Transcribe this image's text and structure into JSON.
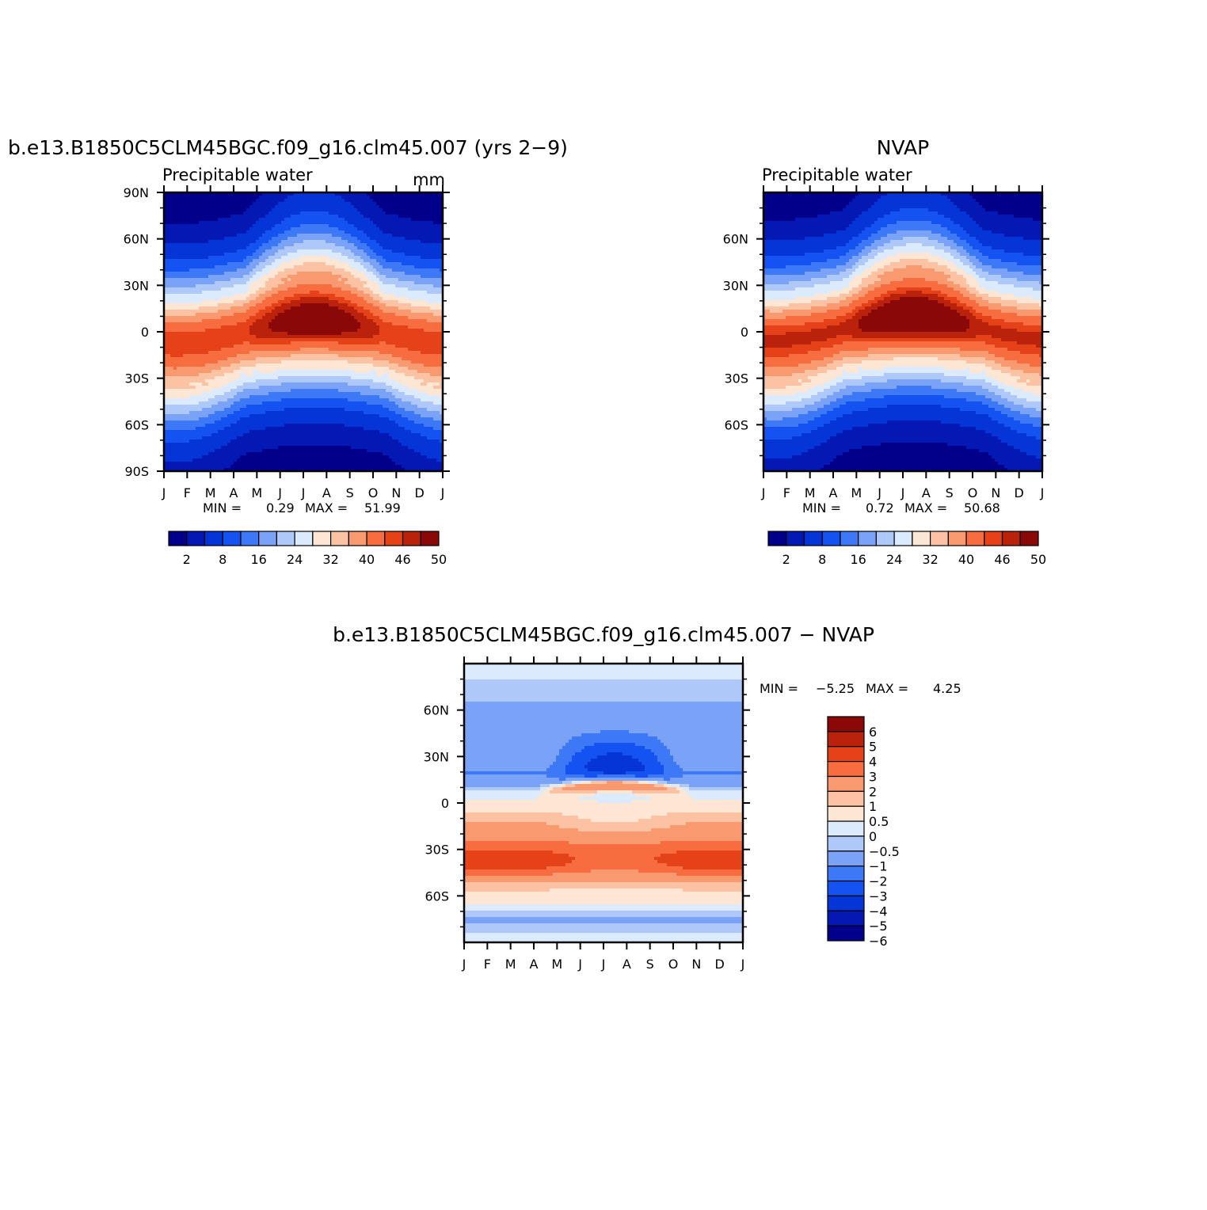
{
  "figure": {
    "colors": {
      "abs": [
        "#02008a",
        "#0418b4",
        "#0535d6",
        "#1452f2",
        "#3d78f6",
        "#7aa2f7",
        "#afc8fa",
        "#dbeafc",
        "#fde6d3",
        "#fbc2a3",
        "#f99970",
        "#f76d3f",
        "#e6421a",
        "#bb220c",
        "#8a0808"
      ],
      "diff": [
        "#02008a",
        "#0418b4",
        "#0535d6",
        "#1452f2",
        "#3d78f6",
        "#7aa2f7",
        "#afc8fa",
        "#dbeafc",
        "#fde6d3",
        "#fbc2a3",
        "#f99970",
        "#f76d3f",
        "#e6421a",
        "#bb220c",
        "#8a0808"
      ]
    }
  },
  "chart_data": [
    {
      "type": "heatmap",
      "title": "b.e13.B1850C5CLM45BGC.f09_g16.clm45.007 (yrs 2−9)",
      "subtitle": "Precipitable water",
      "units": "mm",
      "x_ticks": [
        "J",
        "F",
        "M",
        "A",
        "M",
        "J",
        "J",
        "A",
        "S",
        "O",
        "N",
        "D",
        "J"
      ],
      "y_ticks": [
        "90N",
        "60N",
        "30N",
        "0",
        "30S",
        "60S",
        "90S"
      ],
      "ylim": [
        -90,
        90
      ],
      "stats": {
        "min_label": "MIN =",
        "min": "0.29",
        "max_label": "MAX =",
        "max": "51.99"
      },
      "colorbar": {
        "labels": [
          "2",
          "8",
          "16",
          "24",
          "32",
          "40",
          "46",
          "50"
        ],
        "levels": [
          2,
          4,
          8,
          12,
          16,
          20,
          24,
          28,
          32,
          36,
          40,
          44,
          46,
          48,
          50
        ]
      },
      "max_value": 51.99,
      "min_value": 0.29
    },
    {
      "type": "heatmap",
      "title": "NVAP",
      "subtitle": "Precipitable water",
      "x_ticks": [
        "J",
        "F",
        "M",
        "A",
        "M",
        "J",
        "J",
        "A",
        "S",
        "O",
        "N",
        "D",
        "J"
      ],
      "y_ticks": [
        "60N",
        "30N",
        "0",
        "30S",
        "60S"
      ],
      "ylim": [
        -90,
        90
      ],
      "stats": {
        "min_label": "MIN =",
        "min": "0.72",
        "max_label": "MAX =",
        "max": "50.68"
      },
      "colorbar": {
        "labels": [
          "2",
          "8",
          "16",
          "24",
          "32",
          "40",
          "46",
          "50"
        ],
        "levels": [
          2,
          4,
          8,
          12,
          16,
          20,
          24,
          28,
          32,
          36,
          40,
          44,
          46,
          48,
          50
        ]
      },
      "max_value": 50.68,
      "min_value": 0.72
    },
    {
      "type": "heatmap",
      "title": "b.e13.B1850C5CLM45BGC.f09_g16.clm45.007 − NVAP",
      "x_ticks": [
        "J",
        "F",
        "M",
        "A",
        "M",
        "J",
        "J",
        "A",
        "S",
        "O",
        "N",
        "D",
        "J"
      ],
      "y_ticks": [
        "60N",
        "30N",
        "0",
        "30S",
        "60S"
      ],
      "ylim": [
        -90,
        90
      ],
      "stats": {
        "min_label": "MIN =",
        "min": "−5.25",
        "max_label": "MAX =",
        "max": "4.25"
      },
      "colorbar": {
        "labels": [
          "6",
          "5",
          "4",
          "3",
          "2",
          "1",
          "0.5",
          "0",
          "−0.5",
          "−1",
          "−2",
          "−3",
          "−4",
          "−5",
          "−6"
        ]
      },
      "max_value": 4.25,
      "min_value": -5.25
    }
  ]
}
